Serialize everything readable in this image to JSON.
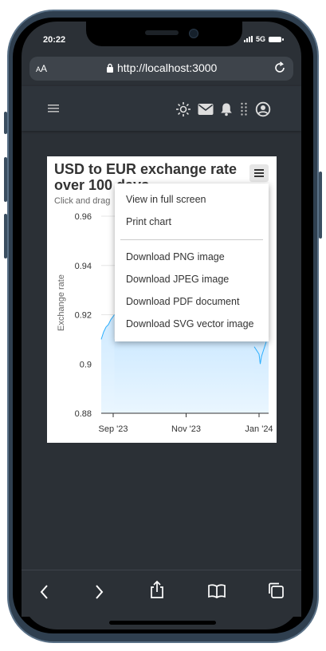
{
  "status_bar": {
    "time": "20:22",
    "network": "5G"
  },
  "browser": {
    "text_size_label_small": "A",
    "text_size_label": "A",
    "url": "http://localhost:3000"
  },
  "header": {
    "icons": [
      "menu-icon",
      "sun-icon",
      "mail-icon",
      "bell-icon",
      "apps-icon",
      "account-icon"
    ]
  },
  "chart_data": {
    "type": "area",
    "title": "USD to EUR exchange rate over 100 days",
    "subtitle": "Click and drag",
    "ylabel": "Exchange rate",
    "ylim": [
      0.88,
      0.96
    ],
    "yticks": [
      "0.96",
      "0.94",
      "0.92",
      "0.9",
      "0.88"
    ],
    "xticks": [
      "Sep '23",
      "Nov '23",
      "Jan '24"
    ],
    "series": [
      {
        "x": [
          "2023-08-22",
          "2023-08-24",
          "2023-08-26",
          "2023-08-28",
          "2023-08-30",
          "2023-09-02"
        ],
        "y": [
          0.91,
          0.913,
          0.915,
          0.916,
          0.918,
          0.92
        ]
      },
      {
        "x": [
          "2023-12-28",
          "2024-01-01",
          "2024-01-02",
          "2024-01-03",
          "2024-01-05",
          "2024-01-07"
        ],
        "y": [
          0.907,
          0.904,
          0.9,
          0.903,
          0.906,
          0.909
        ]
      }
    ],
    "colors": {
      "line": "#2caffe",
      "fill_top": "#cfeaff",
      "fill_bottom": "#eaf6ff"
    }
  },
  "menu": {
    "items": [
      "View in full screen",
      "Print chart",
      "Download PNG image",
      "Download JPEG image",
      "Download PDF document",
      "Download SVG vector image"
    ]
  },
  "bottom_bar": {
    "icons": [
      "back-icon",
      "forward-icon",
      "share-icon",
      "bookmarks-icon",
      "tabs-icon"
    ]
  }
}
